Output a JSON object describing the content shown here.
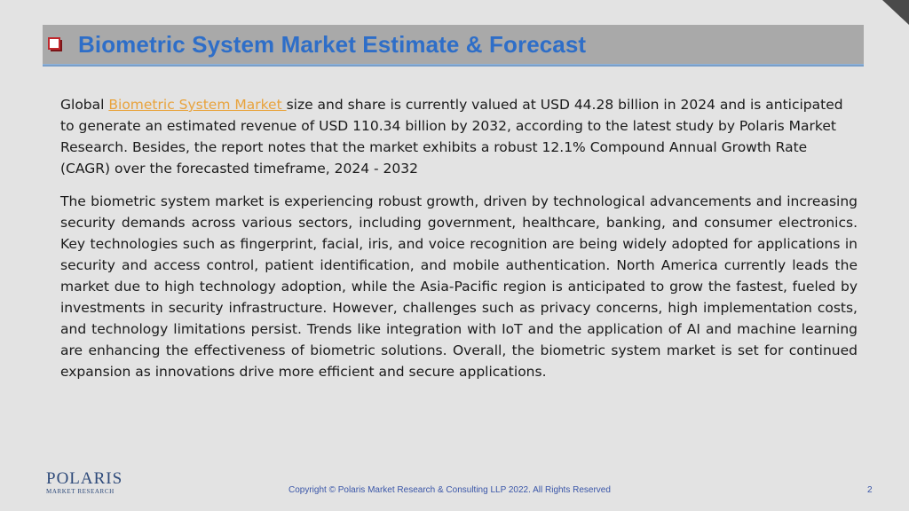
{
  "slide": {
    "title": "Biometric System Market Estimate & Forecast",
    "para1": {
      "prefix": "Global ",
      "link_text": "Biometric System Market ",
      "suffix": "size and share is currently valued at USD 44.28 billion in 2024 and is anticipated to generate an estimated revenue of USD 110.34 billion by 2032, according to the latest study by Polaris Market Research. Besides, the report notes that the market exhibits a robust 12.1% Compound Annual Growth Rate (CAGR) over the forecasted timeframe, 2024 - 2032"
    },
    "para2": "The biometric system market is experiencing robust growth, driven by technological advancements and increasing security demands across various sectors, including government, healthcare, banking, and consumer electronics. Key technologies such as fingerprint, facial, iris, and voice recognition are being widely adopted for applications in security and access control, patient identification, and mobile authentication. North America currently leads the market due to high technology adoption, while the Asia-Pacific region is anticipated to grow the fastest, fueled by investments in security infrastructure. However, challenges such as privacy concerns, high implementation costs, and technology limitations persist. Trends like integration with IoT and the application of AI and machine learning are enhancing the effectiveness of biometric solutions. Overall, the biometric system market is set for continued expansion as innovations drive more efficient and secure applications."
  },
  "footer": {
    "logo_name": "POLARIS",
    "logo_tag": "MARKET RESEARCH",
    "copyright": "Copyright © Polaris Market Research & Consulting LLP 2022. All Rights Reserved",
    "page_number": "2"
  },
  "colors": {
    "title": "#2e6ec8",
    "link": "#e8a33d",
    "bullet": "#c0282d",
    "title_bar": "#a9a9a9"
  }
}
